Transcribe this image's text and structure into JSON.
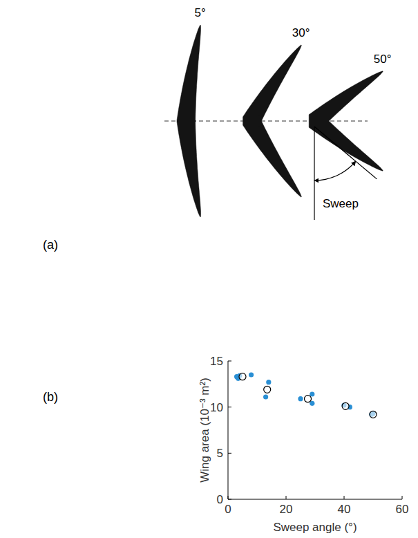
{
  "panel_a": {
    "label": "(a)",
    "wings": [
      {
        "sweep": 5,
        "label": "5°"
      },
      {
        "sweep": 30,
        "label": "30°"
      },
      {
        "sweep": 50,
        "label": "50°"
      }
    ],
    "sweep_label": "Sweep"
  },
  "chart_data": {
    "type": "scatter",
    "panel_label": "(b)",
    "x_label": "Sweep angle (°)",
    "y_label": "Wing area (10⁻³ m²)",
    "xlim": [
      0,
      60
    ],
    "xticks": [
      0,
      20,
      40,
      60
    ],
    "ylim": [
      0,
      15
    ],
    "yticks": [
      0,
      5,
      10,
      15
    ],
    "grid": false,
    "series": [
      {
        "color": "#2a8fd4",
        "marker": "filled-circle",
        "x": [
          3,
          3.5,
          4,
          8,
          13,
          14,
          25,
          29,
          29,
          40,
          42,
          49.5,
          50
        ],
        "values": [
          13.3,
          13.1,
          13.4,
          13.5,
          11.1,
          12.7,
          10.9,
          11.4,
          10.4,
          10.2,
          10.0,
          9.2,
          9.3
        ]
      },
      {
        "color": "#000000",
        "marker": "open-circle",
        "x": [
          5,
          13.5,
          27.5,
          40.5,
          50
        ],
        "values": [
          13.3,
          11.9,
          10.9,
          10.1,
          9.2
        ]
      }
    ]
  }
}
